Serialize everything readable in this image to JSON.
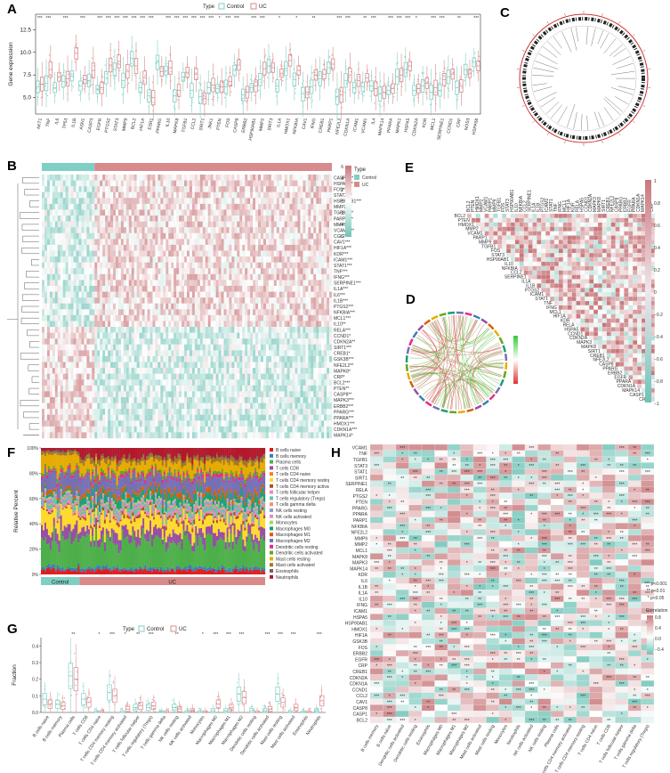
{
  "panels": {
    "a": "A",
    "b": "B",
    "c": "C",
    "d": "D",
    "e": "E",
    "f": "F",
    "g": "G",
    "h": "H"
  },
  "colors": {
    "control": "#7fcfc4",
    "uc": "#d98a8a",
    "heat_low": "#6ec3b6",
    "heat_mid": "#ffffff",
    "heat_high": "#c9787b",
    "sig_pos": "#e8a8aa",
    "sig_neg": "#a7dbd3"
  },
  "legend_type": {
    "title": "Type",
    "control": "Control",
    "uc": "UC"
  },
  "chart_data": [
    {
      "id": "A",
      "type": "box",
      "ylabel": "Gene expression",
      "yticks": [
        5.0,
        7.5,
        10.0,
        12.5
      ],
      "ylim": [
        3.2,
        14.2
      ],
      "categories": [
        "AKT1",
        "TNF",
        "IL6",
        "TP53",
        "IL1B",
        "ASN1",
        "CASP3",
        "EGFR",
        "PTGS2",
        "STAT3",
        "MMP9",
        "BCL2",
        "HIF1A",
        "ESR1",
        "PPARG",
        "IL10",
        "MAPK8",
        "TGFB1",
        "CCL2",
        "SIRT1",
        "JNK1",
        "PTEN",
        "FOS",
        "CASP8",
        "ERBB2",
        "HSP90AB1",
        "MMP2",
        "SIRT3",
        "IL1A",
        "HMOX1",
        "NFKBIA",
        "CAV1",
        "IFNG",
        "CREB1",
        "PARP1",
        "NFE2L2",
        "CDKN1A",
        "ICAM1",
        "VCAM1",
        "IL4",
        "MAPK14",
        "PPARA",
        "MAPK1",
        "HSPA5",
        "CDKN2A",
        "KDR",
        "MCL1",
        "SERPINE1",
        "CCND1",
        "CRP",
        "NOS3",
        "HSPA5b"
      ],
      "control_medians": [
        6.2,
        6.6,
        6.1,
        6.8,
        7.4,
        6.3,
        6.9,
        5.9,
        7.2,
        8.1,
        6.9,
        9.3,
        6.1,
        5.2,
        8.9,
        8.0,
        5.2,
        7.3,
        5.8,
        5.1,
        6.1,
        6.0,
        6.2,
        8.0,
        5.3,
        6.1,
        7.0,
        8.5,
        6.3,
        8.2,
        7.0,
        5.4,
        6.2,
        7.1,
        8.3,
        5.1,
        6.9,
        6.1,
        6.2,
        6.3,
        5.4,
        5.8,
        7.3,
        8.1,
        5.8,
        6.3,
        5.6,
        5.8,
        7.3,
        6.1,
        8.1,
        8.9
      ],
      "uc_medians": [
        6.5,
        8.1,
        7.3,
        7.1,
        9.9,
        7.0,
        8.0,
        6.1,
        8.6,
        9.0,
        7.9,
        8.5,
        7.2,
        5.0,
        7.9,
        8.3,
        5.8,
        7.8,
        7.6,
        4.9,
        6.4,
        6.2,
        6.8,
        8.6,
        5.6,
        6.3,
        8.2,
        8.3,
        7.7,
        9.1,
        8.0,
        5.6,
        7.5,
        7.6,
        8.7,
        5.3,
        7.5,
        6.9,
        7.2,
        6.0,
        5.6,
        6.0,
        7.5,
        8.5,
        6.0,
        6.6,
        6.1,
        7.0,
        7.6,
        6.3,
        7.7,
        8.5
      ],
      "significance": [
        "***",
        "***",
        "",
        "***",
        "",
        "***",
        "",
        "***",
        "***",
        "***",
        "***",
        "***",
        "***",
        "***",
        "",
        "***",
        "***",
        "***",
        "***",
        "***",
        "***",
        "*",
        "***",
        "***",
        "",
        "***",
        "***",
        "",
        "*",
        "",
        "*",
        "",
        "**",
        "",
        "",
        "***",
        "***",
        "",
        "**",
        "***",
        "",
        "***",
        "***",
        "***",
        "*",
        "",
        "***",
        "***",
        "",
        "**",
        "",
        "***"
      ]
    },
    {
      "id": "B",
      "type": "heatmap",
      "legend_title": "Type",
      "scale_ticks": [
        "6",
        "4",
        "2",
        "0",
        "−2",
        "−4",
        "−6"
      ],
      "genes": [
        "CASP1***",
        "HSPA5***",
        "FOS***",
        "STAT3***",
        "HSP90AB1***",
        "MMP2***",
        "TGFB1***",
        "PARP1***",
        "MMP9***",
        "VCAM1***",
        "CCL2***",
        "CAV1***",
        "HIF1A***",
        "KDR***",
        "ICAM1***",
        "STAT1***",
        "TNF***",
        "IFNG***",
        "SERPINE1***",
        "IL1A***",
        "IL6***",
        "IL1B***",
        "PTGS2***",
        "NFKBIA***",
        "MCL1***",
        "IL10**",
        "RELA***",
        "CCND1*",
        "CDKN2A**",
        "SIRT1***",
        "CREB1*",
        "GSK3B***",
        "NFE2L2**",
        "MAPK8*",
        "CRP*",
        "BCL2***",
        "PTEN**",
        "CASP8**",
        "MAPK3***",
        "ERBB2***",
        "PPARG***",
        "PPARA***",
        "HMOX1***",
        "CDKN1A***",
        "MAPK14*"
      ]
    },
    {
      "id": "E",
      "type": "heatmap",
      "scale_ticks": [
        "1",
        "0.8",
        "0.6",
        "0.4",
        "0.2",
        "0",
        "−0.2",
        "−0.4",
        "−0.6",
        "−0.8",
        "−1"
      ],
      "genes": [
        "BCL2",
        "PTEN",
        "HMOX1",
        "MMP2",
        "VCAM1",
        "PARP1",
        "MMP9",
        "TGFB1",
        "FOS",
        "STAT3",
        "HSP90AB1",
        "IL10",
        "NFKBIA",
        "CCL2",
        "SERPINE1",
        "IL1A",
        "IL1B",
        "PTGS2",
        "ICAM1",
        "STAT1",
        "TNF",
        "IFNG",
        "MCL1",
        "HIF1A",
        "KDR",
        "RELA",
        "HSPA5",
        "CCND1",
        "CDKN2A",
        "MAPK3",
        "MAPK8",
        "SIRT1",
        "CREB1",
        "NFE2L2",
        "CASP8",
        "PPARG",
        "ERBB2",
        "EGFR",
        "PPARA",
        "CDKN1A",
        "MAPK14",
        "CASP1",
        "CRP"
      ]
    },
    {
      "id": "F",
      "type": "bar",
      "ylabel": "Relative Percent",
      "yticks": [
        "0%",
        "20%",
        "40%",
        "60%",
        "80%",
        "100%"
      ],
      "groups": [
        "Control",
        "UC"
      ],
      "cell_types": [
        "B cells naive",
        "B cells memory",
        "Plasma cells",
        "T cells CD8",
        "T cells CD4 naive",
        "T cells CD4 memory resting",
        "T cells CD4 memory activated",
        "T cells follicular helper",
        "T cells regulatory (Tregs)",
        "T cells gamma delta",
        "NK cells resting",
        "NK cells activated",
        "Monocytes",
        "Macrophages M0",
        "Macrophages M1",
        "Macrophages M2",
        "Dendritic cells resting",
        "Dendritic cells activated",
        "Mast cells resting",
        "Mast cells activated",
        "Eosinophils",
        "Neutrophils"
      ],
      "cell_colors": [
        "#e41a1c",
        "#377eb8",
        "#4daf4a",
        "#984ea3",
        "#ff7f00",
        "#ffd92f",
        "#a65628",
        "#f781bf",
        "#66c2a5",
        "#fc8d62",
        "#8da0cb",
        "#e78ac3",
        "#a6d854",
        "#1b9e77",
        "#d95f02",
        "#7570b3",
        "#e7298a",
        "#66a61e",
        "#e6ab02",
        "#a6761d",
        "#666666",
        "#b2182b"
      ],
      "mean_fraction_control": [
        0.04,
        0.02,
        0.22,
        0.08,
        0.0,
        0.12,
        0.01,
        0.02,
        0.03,
        0.01,
        0.02,
        0.01,
        0.01,
        0.02,
        0.02,
        0.12,
        0.02,
        0.02,
        0.1,
        0.02,
        0.01,
        0.02
      ],
      "mean_fraction_uc": [
        0.03,
        0.02,
        0.2,
        0.07,
        0.0,
        0.1,
        0.02,
        0.02,
        0.03,
        0.01,
        0.02,
        0.01,
        0.01,
        0.05,
        0.03,
        0.11,
        0.02,
        0.02,
        0.07,
        0.03,
        0.01,
        0.07
      ]
    },
    {
      "id": "G",
      "type": "box",
      "ylabel": "Fraction",
      "yticks": [
        0.0,
        0.1,
        0.2,
        0.3,
        0.4
      ],
      "ylim": [
        0,
        0.45
      ],
      "categories": [
        "B cells naive",
        "B cells memory",
        "Plasma cells",
        "T cells CD8",
        "T cells CD4 naive",
        "T cells CD4 memory resting",
        "T cells CD4 memory activated",
        "T cells follicular helper",
        "T cells regulatory (Tregs)",
        "T cells gamma delta",
        "NK cells resting",
        "NK cells activated",
        "Monocytes",
        "Macrophages M0",
        "Macrophages M1",
        "Macrophages M2",
        "Dendritic cells resting",
        "Dendritic cells activated",
        "Mast cells resting",
        "Mast cells activated",
        "Eosinophils",
        "Neutrophils"
      ],
      "control_medians": [
        0.08,
        0.05,
        0.22,
        0.08,
        0.0,
        0.12,
        0.0,
        0.03,
        0.03,
        0.0,
        0.03,
        0.0,
        0.0,
        0.01,
        0.01,
        0.11,
        0.01,
        0.01,
        0.11,
        0.0,
        0.0,
        0.01
      ],
      "uc_medians": [
        0.05,
        0.04,
        0.2,
        0.06,
        0.0,
        0.1,
        0.02,
        0.04,
        0.04,
        0.0,
        0.02,
        0.01,
        0.0,
        0.05,
        0.03,
        0.09,
        0.0,
        0.02,
        0.06,
        0.03,
        0.0,
        0.07
      ],
      "significance": [
        "",
        "",
        "**",
        "",
        "*",
        "***",
        "*",
        "**",
        "***",
        "",
        "**",
        "",
        "*",
        "***",
        "***",
        "***",
        "",
        "***",
        "***",
        "***",
        "",
        "***"
      ]
    },
    {
      "id": "H",
      "type": "heatmap",
      "legend_p": [
        "*** p<0.001",
        "** p<0.01",
        "* p<0.05"
      ],
      "legend_title": "Correlation",
      "scale_ticks": [
        "0.8",
        "0.4",
        "0.0",
        "−0.4"
      ],
      "genes": [
        "VCAM1",
        "TNF",
        "TGFB1",
        "STAT3",
        "STAT1",
        "SIRT1",
        "SERPINE1",
        "RELA",
        "PTGS2",
        "PTEN",
        "PPARG",
        "PPARA",
        "PARP1",
        "NFKBIA",
        "NFE2L2",
        "MMP9",
        "MMP2",
        "MCL1",
        "MAPK8",
        "MAPK3",
        "MAPK14",
        "KDR",
        "IL6",
        "IL1B",
        "IL1A",
        "IL10",
        "IFNG",
        "ICAM1",
        "HSPA5",
        "HSP90AB1",
        "HMOX1",
        "HIF1A",
        "GSK3B",
        "FOS",
        "ERBB2",
        "EGFR",
        "CRP",
        "CREB1",
        "CDKN2A",
        "CDKN1A",
        "CCND1",
        "CCL2",
        "CAV1",
        "CASP8",
        "CASP1",
        "BCL2"
      ],
      "cells": [
        "B cells memory",
        "B cells naive",
        "Dendritic cells activated",
        "Dendritic cells resting",
        "Eosinophils",
        "Macrophages M0",
        "Macrophages M1",
        "Macrophages M2",
        "Mast cells activated",
        "Mast cells resting",
        "Monocytes",
        "Neutrophils",
        "NK cells activated",
        "NK cells resting",
        "Plasma cells",
        "T cells CD4 memory activated",
        "T cells CD4 memory resting",
        "T cells CD4 naive",
        "T cells CD8",
        "T cells follicular helper",
        "T cells gamma delta",
        "T cells regulatory (Tregs)"
      ]
    }
  ],
  "f_groups": {
    "control": "Control",
    "uc": "UC"
  },
  "g_legend": {
    "title": "Type",
    "control": "Control",
    "uc": "UC"
  }
}
